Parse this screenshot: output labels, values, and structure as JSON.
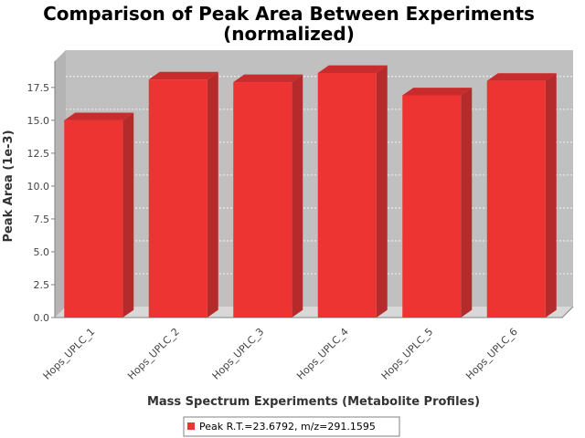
{
  "chart_data": {
    "type": "bar",
    "title_line1": "Comparison of Peak Area Between Experiments",
    "title_line2": "(normalized)",
    "xlabel": "Mass Spectrum Experiments (Metabolite Profiles)",
    "ylabel": "Peak Area (1e-3)",
    "categories": [
      "Hops_UPLC_1",
      "Hops_UPLC_2",
      "Hops_UPLC_3",
      "Hops_UPLC_4",
      "Hops_UPLC_5",
      "Hops_UPLC_6"
    ],
    "series": [
      {
        "name": "Peak R.T.=23.6792, m/z=291.1595",
        "values": [
          15.0,
          18.1,
          17.9,
          18.6,
          16.9,
          18.0
        ]
      }
    ],
    "ylim": [
      0,
      19.5
    ],
    "yticks": [
      "0.0",
      "2.5",
      "5.0",
      "7.5",
      "10.0",
      "12.5",
      "15.0",
      "17.5"
    ],
    "grid": true,
    "legend_position": "bottom",
    "colors": {
      "bar": "#ee3333",
      "bar_side": "#b52a2a",
      "bar_top": "#c82c2c",
      "plot_bg": "#c0c0c0"
    }
  }
}
